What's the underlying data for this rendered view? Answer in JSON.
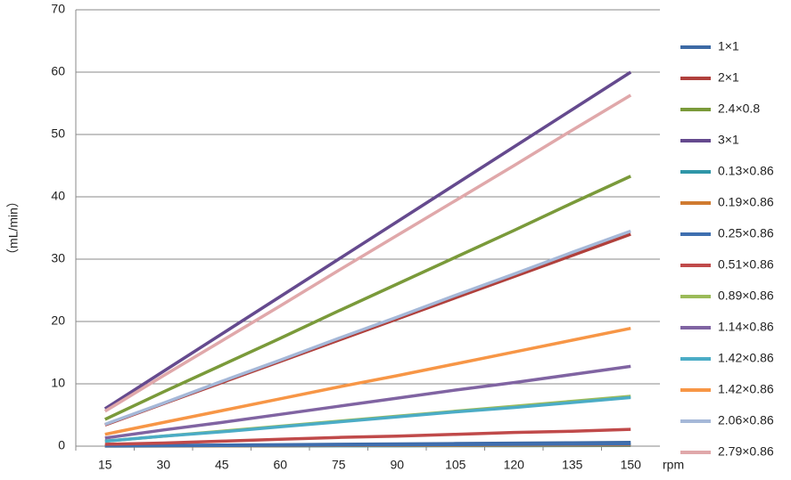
{
  "chart_data": {
    "type": "line",
    "y_label": "（mL/min）",
    "x_label": "rpm",
    "categories": [
      "15",
      "30",
      "45",
      "60",
      "75",
      "90",
      "105",
      "120",
      "135",
      "150"
    ],
    "ylim": [
      0,
      70
    ],
    "yticks": [
      0,
      10,
      20,
      30,
      40,
      50,
      60,
      70
    ],
    "grid": true,
    "legend": "right",
    "series": [
      {
        "name": "1×1",
        "color": "#3d6aa5",
        "values": [
          0.06,
          0.12,
          0.18,
          0.24,
          0.3,
          0.36,
          0.42,
          0.48,
          0.54,
          0.6
        ]
      },
      {
        "name": "2×1",
        "color": "#b0403c",
        "values": [
          3.4,
          6.8,
          10.2,
          13.6,
          17,
          20.4,
          23.8,
          27.2,
          30.6,
          34
        ]
      },
      {
        "name": "2.4×0.8",
        "color": "#7a9a3a",
        "values": [
          4.3,
          8.7,
          13,
          17.3,
          21.7,
          26,
          30.3,
          34.6,
          39,
          43.3
        ]
      },
      {
        "name": "3×1",
        "color": "#654a8e",
        "values": [
          6,
          12,
          18,
          24,
          30,
          36,
          42,
          48,
          54,
          60
        ]
      },
      {
        "name": "0.13×0.86",
        "color": "#2f96a8",
        "values": [
          0.01,
          0.02,
          0.03,
          0.04,
          0.05,
          0.06,
          0.07,
          0.08,
          0.09,
          0.1
        ]
      },
      {
        "name": "0.19×0.86",
        "color": "#d07a30",
        "values": [
          0.02,
          0.04,
          0.06,
          0.08,
          0.1,
          0.12,
          0.14,
          0.16,
          0.18,
          0.2
        ]
      },
      {
        "name": "0.25×0.86",
        "color": "#3f6fb0",
        "values": [
          0.04,
          0.07,
          0.11,
          0.14,
          0.18,
          0.21,
          0.25,
          0.28,
          0.32,
          0.35
        ]
      },
      {
        "name": "0.51×0.86",
        "color": "#c04a4a",
        "values": [
          0.3,
          0.5,
          0.8,
          1.1,
          1.4,
          1.6,
          1.9,
          2.2,
          2.4,
          2.7
        ]
      },
      {
        "name": "0.89×0.86",
        "color": "#9bbb59",
        "values": [
          0.8,
          1.6,
          2.4,
          3.2,
          4,
          4.8,
          5.6,
          6.4,
          7.2,
          8
        ]
      },
      {
        "name": "1.14×0.86",
        "color": "#8064a2",
        "values": [
          1.3,
          2.6,
          3.8,
          5.1,
          6.4,
          7.7,
          9,
          10.2,
          11.5,
          12.8
        ]
      },
      {
        "name": "1.42×0.86",
        "color": "#4bacc6",
        "values": [
          0.8,
          1.6,
          2.3,
          3.1,
          3.9,
          4.7,
          5.5,
          6.2,
          7,
          7.8
        ]
      },
      {
        "name": "1.42×0.86",
        "color": "#f79646",
        "values": [
          1.9,
          3.8,
          5.7,
          7.6,
          9.5,
          11.3,
          13.2,
          15.1,
          17,
          18.9
        ]
      },
      {
        "name": "2.06×0.86",
        "color": "#a5b8d8",
        "values": [
          3.5,
          6.9,
          10.4,
          13.8,
          17.3,
          20.7,
          24.2,
          27.6,
          31.1,
          34.5
        ]
      },
      {
        "name": "2.79×0.86",
        "color": "#e0a8aa",
        "values": [
          5.6,
          11.3,
          16.9,
          22.5,
          28.2,
          33.8,
          39.4,
          45,
          50.7,
          56.3
        ]
      }
    ]
  }
}
